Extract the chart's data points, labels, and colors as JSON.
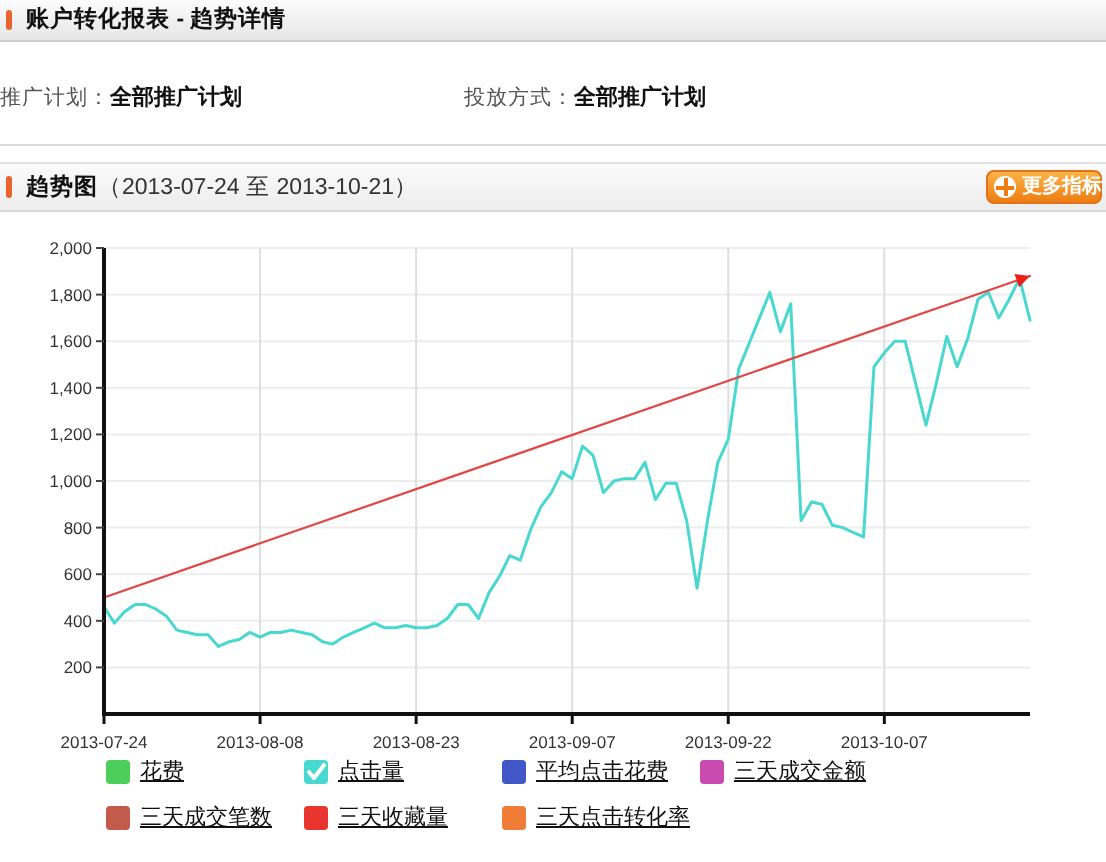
{
  "chart_data": {
    "type": "line",
    "title": "账户转化报表 - 趋势详情",
    "subtitle": "趋势图（2013-07-24 至 2013-10-21）",
    "annotations": [
      "推广计划：全部推广计划",
      "投放方式：全部推广计划",
      "更多指标"
    ],
    "x": [
      "2013-07-24",
      "2013-07-25",
      "2013-07-26",
      "2013-07-27",
      "2013-07-28",
      "2013-07-29",
      "2013-07-30",
      "2013-07-31",
      "2013-08-01",
      "2013-08-02",
      "2013-08-03",
      "2013-08-04",
      "2013-08-05",
      "2013-08-06",
      "2013-08-07",
      "2013-08-08",
      "2013-08-09",
      "2013-08-10",
      "2013-08-11",
      "2013-08-12",
      "2013-08-13",
      "2013-08-14",
      "2013-08-15",
      "2013-08-16",
      "2013-08-17",
      "2013-08-18",
      "2013-08-19",
      "2013-08-20",
      "2013-08-21",
      "2013-08-22",
      "2013-08-23",
      "2013-08-24",
      "2013-08-25",
      "2013-08-26",
      "2013-08-27",
      "2013-08-28",
      "2013-08-29",
      "2013-08-30",
      "2013-08-31",
      "2013-09-01",
      "2013-09-02",
      "2013-09-03",
      "2013-09-04",
      "2013-09-05",
      "2013-09-06",
      "2013-09-07",
      "2013-09-08",
      "2013-09-09",
      "2013-09-10",
      "2013-09-11",
      "2013-09-12",
      "2013-09-13",
      "2013-09-14",
      "2013-09-15",
      "2013-09-16",
      "2013-09-17",
      "2013-09-18",
      "2013-09-19",
      "2013-09-20",
      "2013-09-21",
      "2013-09-22",
      "2013-09-23",
      "2013-09-24",
      "2013-09-25",
      "2013-09-26",
      "2013-09-27",
      "2013-09-28",
      "2013-09-29",
      "2013-09-30",
      "2013-10-01",
      "2013-10-02",
      "2013-10-03",
      "2013-10-04",
      "2013-10-05",
      "2013-10-06",
      "2013-10-07",
      "2013-10-08",
      "2013-10-09",
      "2013-10-10",
      "2013-10-11",
      "2013-10-12",
      "2013-10-13",
      "2013-10-14",
      "2013-10-15",
      "2013-10-16",
      "2013-10-17",
      "2013-10-18",
      "2013-10-19",
      "2013-10-20",
      "2013-10-21"
    ],
    "xlim": [
      "2013-07-24",
      "2013-10-21"
    ],
    "xticks": [
      "2013-07-24",
      "2013-08-08",
      "2013-08-23",
      "2013-09-07",
      "2013-09-22",
      "2013-10-07"
    ],
    "ylim": [
      0,
      2000
    ],
    "yticks": [
      200,
      400,
      600,
      800,
      {
        "value": 1000,
        "label": "1,000"
      },
      {
        "value": 1200,
        "label": "1,200"
      },
      {
        "value": 1400,
        "label": "1,400"
      },
      {
        "value": 1600,
        "label": "1,600"
      },
      {
        "value": 1800,
        "label": "1,800"
      },
      {
        "value": 2000,
        "label": "2,000"
      }
    ],
    "grid": true,
    "legend": "bottom",
    "series": [
      {
        "name": "花费",
        "color": "#4ccf5a",
        "values": [
          null,
          null,
          null,
          null,
          null,
          null,
          null,
          null,
          null,
          null,
          null,
          null,
          null,
          null,
          null,
          null,
          null,
          null,
          null,
          null,
          null,
          null,
          null,
          null,
          null,
          null,
          null,
          null,
          null,
          null,
          null,
          null,
          null,
          null,
          null,
          null,
          null,
          null,
          null,
          null,
          null,
          null,
          null,
          null,
          null,
          null,
          null,
          null,
          null,
          null,
          null,
          null,
          null,
          null,
          null,
          null,
          null,
          null,
          null,
          null,
          null,
          null,
          null,
          null,
          null,
          null,
          null,
          null,
          null,
          null,
          null,
          null,
          null,
          null,
          null,
          null,
          null,
          null,
          null,
          null,
          null,
          null,
          null,
          null,
          null,
          null,
          null,
          null,
          null,
          null
        ]
      },
      {
        "name": "点击量",
        "color": "#48d8d0",
        "values": [
          460,
          390,
          440,
          470,
          470,
          450,
          420,
          360,
          350,
          340,
          340,
          290,
          310,
          320,
          350,
          330,
          350,
          350,
          360,
          350,
          340,
          310,
          300,
          330,
          350,
          370,
          390,
          370,
          370,
          380,
          370,
          370,
          380,
          410,
          470,
          470,
          410,
          520,
          590,
          680,
          660,
          790,
          890,
          950,
          1040,
          1010,
          1150,
          1110,
          950,
          1000,
          1010,
          1010,
          1080,
          920,
          990,
          990,
          830,
          540,
          830,
          1080,
          1180,
          1480,
          1590,
          1700,
          1810,
          1640,
          1760,
          830,
          910,
          900,
          810,
          800,
          780,
          760,
          1490,
          1550,
          1600,
          1600,
          1420,
          1240,
          1420,
          1620,
          1490,
          1610,
          1780,
          1810,
          1700,
          1780,
          1870,
          1690
        ]
      },
      {
        "name": "平均点击花费",
        "color": "#4157c8",
        "values": [
          null,
          null,
          null,
          null,
          null,
          null,
          null,
          null,
          null,
          null,
          null,
          null,
          null,
          null,
          null,
          null,
          null,
          null,
          null,
          null,
          null,
          null,
          null,
          null,
          null,
          null,
          null,
          null,
          null,
          null,
          null,
          null,
          null,
          null,
          null,
          null,
          null,
          null,
          null,
          null,
          null,
          null,
          null,
          null,
          null,
          null,
          null,
          null,
          null,
          null,
          null,
          null,
          null,
          null,
          null,
          null,
          null,
          null,
          null,
          null,
          null,
          null,
          null,
          null,
          null,
          null,
          null,
          null,
          null,
          null,
          null,
          null,
          null,
          null,
          null,
          null,
          null,
          null,
          null,
          null,
          null,
          null,
          null,
          null,
          null,
          null,
          null,
          null,
          null,
          null
        ]
      },
      {
        "name": "三天成交金额",
        "color": "#c94bb0",
        "values": [
          null,
          null,
          null,
          null,
          null,
          null,
          null,
          null,
          null,
          null,
          null,
          null,
          null,
          null,
          null,
          null,
          null,
          null,
          null,
          null,
          null,
          null,
          null,
          null,
          null,
          null,
          null,
          null,
          null,
          null,
          null,
          null,
          null,
          null,
          null,
          null,
          null,
          null,
          null,
          null,
          null,
          null,
          null,
          null,
          null,
          null,
          null,
          null,
          null,
          null,
          null,
          null,
          null,
          null,
          null,
          null,
          null,
          null,
          null,
          null,
          null,
          null,
          null,
          null,
          null,
          null,
          null,
          null,
          null,
          null,
          null,
          null,
          null,
          null,
          null,
          null,
          null,
          null,
          null,
          null,
          null,
          null,
          null,
          null,
          null,
          null,
          null,
          null,
          null,
          null
        ]
      },
      {
        "name": "三天成交笔数",
        "color": "#c25b4c",
        "values": [
          null,
          null,
          null,
          null,
          null,
          null,
          null,
          null,
          null,
          null,
          null,
          null,
          null,
          null,
          null,
          null,
          null,
          null,
          null,
          null,
          null,
          null,
          null,
          null,
          null,
          null,
          null,
          null,
          null,
          null,
          null,
          null,
          null,
          null,
          null,
          null,
          null,
          null,
          null,
          null,
          null,
          null,
          null,
          null,
          null,
          null,
          null,
          null,
          null,
          null,
          null,
          null,
          null,
          null,
          null,
          null,
          null,
          null,
          null,
          null,
          null,
          null,
          null,
          null,
          null,
          null,
          null,
          null,
          null,
          null,
          null,
          null,
          null,
          null,
          null,
          null,
          null,
          null,
          null,
          null,
          null,
          null,
          null,
          null,
          null,
          null,
          null,
          null,
          null,
          null
        ]
      },
      {
        "name": "三天收藏量",
        "color": "#e8352e",
        "values": [
          null,
          null,
          null,
          null,
          null,
          null,
          null,
          null,
          null,
          null,
          null,
          null,
          null,
          null,
          null,
          null,
          null,
          null,
          null,
          null,
          null,
          null,
          null,
          null,
          null,
          null,
          null,
          null,
          null,
          null,
          null,
          null,
          null,
          null,
          null,
          null,
          null,
          null,
          null,
          null,
          null,
          null,
          null,
          null,
          null,
          null,
          null,
          null,
          null,
          null,
          null,
          null,
          null,
          null,
          null,
          null,
          null,
          null,
          null,
          null,
          null,
          null,
          null,
          null,
          null,
          null,
          null,
          null,
          null,
          null,
          null,
          null,
          null,
          null,
          null,
          null,
          null,
          null,
          null,
          null,
          null,
          null,
          null,
          null,
          null,
          null,
          null,
          null,
          null,
          null
        ]
      },
      {
        "name": "三天点击转化率",
        "color": "#f07d35",
        "values": [
          null,
          null,
          null,
          null,
          null,
          null,
          null,
          null,
          null,
          null,
          null,
          null,
          null,
          null,
          null,
          null,
          null,
          null,
          null,
          null,
          null,
          null,
          null,
          null,
          null,
          null,
          null,
          null,
          null,
          null,
          null,
          null,
          null,
          null,
          null,
          null,
          null,
          null,
          null,
          null,
          null,
          null,
          null,
          null,
          null,
          null,
          null,
          null,
          null,
          null,
          null,
          null,
          null,
          null,
          null,
          null,
          null,
          null,
          null,
          null,
          null,
          null,
          null,
          null,
          null,
          null,
          null,
          null,
          null,
          null,
          null,
          null,
          null,
          null,
          null,
          null,
          null,
          null,
          null,
          null,
          null,
          null,
          null,
          null,
          null,
          null,
          null,
          null,
          null,
          null
        ]
      },
      {
        "type": "line",
        "color": "#e04848",
        "x": [
          "2013-07-24",
          "2013-10-21"
        ],
        "values": [
          500,
          1880
        ]
      }
    ]
  }
}
